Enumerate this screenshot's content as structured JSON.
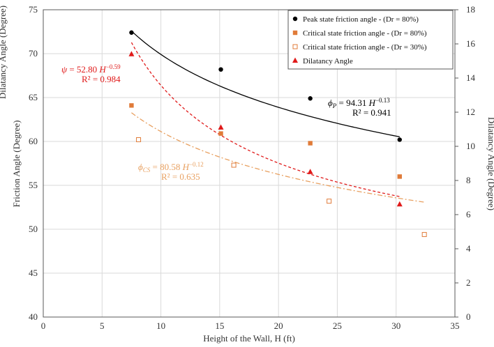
{
  "chart_data": {
    "type": "scatter",
    "xlabel": "Height of  the Wall, H (ft)",
    "ylabel_left": "Friction Angle (Degree)",
    "ylabel_left_outer": "Dilatancy Angle (Degree)",
    "ylabel_right": "Dilatancy Angle (Degree)",
    "xlim": [
      0,
      35
    ],
    "ylim_left": [
      40,
      75
    ],
    "ylim_right": [
      0,
      18
    ],
    "xticks": [
      "0",
      "5",
      "10",
      "15",
      "20",
      "25",
      "30",
      "35"
    ],
    "yticks_left": [
      "40",
      "45",
      "50",
      "55",
      "60",
      "65",
      "70",
      "75"
    ],
    "yticks_right": [
      "0",
      "2",
      "4",
      "6",
      "8",
      "10",
      "12",
      "14",
      "16",
      "18"
    ],
    "grid": true,
    "legend_position": "top-right",
    "series": [
      {
        "name": "Peak state friction angle - (Dr = 80%)",
        "axis": "left",
        "marker": "circle-filled",
        "color": "#000000",
        "x": [
          7.5,
          15.1,
          22.7,
          30.3
        ],
        "y": [
          72.4,
          68.2,
          64.9,
          60.2
        ]
      },
      {
        "name": "Critical state friction angle - (Dr = 80%)",
        "axis": "left",
        "marker": "square-filled",
        "color": "#E07B39",
        "x": [
          7.5,
          15.1,
          22.7,
          30.3
        ],
        "y": [
          64.1,
          60.9,
          59.8,
          56.0
        ]
      },
      {
        "name": "Critical state friction angle - (Dr = 30%)",
        "axis": "left",
        "marker": "square-open",
        "color": "#E07B39",
        "x": [
          8.1,
          16.2,
          24.3,
          32.4
        ],
        "y": [
          60.2,
          57.3,
          53.2,
          49.4
        ]
      },
      {
        "name": "Dilatancy Angle",
        "axis": "right",
        "marker": "triangle",
        "color": "#E01A1A",
        "x": [
          7.5,
          15.1,
          22.7,
          30.3
        ],
        "y": [
          15.4,
          11.1,
          8.5,
          6.6
        ]
      }
    ],
    "fits": [
      {
        "series": "Peak state friction angle - (Dr = 80%)",
        "axis": "left",
        "a": 94.31,
        "b": -0.13,
        "x_range": [
          7.5,
          30.3
        ],
        "color": "#000000",
        "style": "solid",
        "equation": [
          "ϕ",
          "P",
          " = 94.31 ",
          "H",
          "−0.13"
        ],
        "r2": "R² = 0.941"
      },
      {
        "series": "Dilatancy Angle",
        "axis": "right",
        "a": 52.8,
        "b": -0.59,
        "x_range": [
          7.5,
          30.3
        ],
        "color": "#E01A1A",
        "style": "dashed",
        "equation": [
          "ψ",
          "",
          " = 52.80 ",
          "H",
          "−0.59"
        ],
        "r2": "R² = 0.984"
      },
      {
        "series": "Critical state friction angle - (Dr = 30%)",
        "axis": "left",
        "a": 80.58,
        "b": -0.12,
        "x_range": [
          7.5,
          32.4
        ],
        "color": "#E8A060",
        "style": "dashdot",
        "equation": [
          "ϕ",
          "CS",
          " = 80.58 ",
          "H",
          "−0.12"
        ],
        "r2": "R² = 0.635"
      }
    ]
  },
  "colors": {
    "peak": "#000000",
    "critical80": "#E07B39",
    "critical30": "#E07B39",
    "dilatancy": "#E01A1A",
    "fit_cs": "#E8A060",
    "grid": "#d9d9d9",
    "axis": "#595959"
  }
}
